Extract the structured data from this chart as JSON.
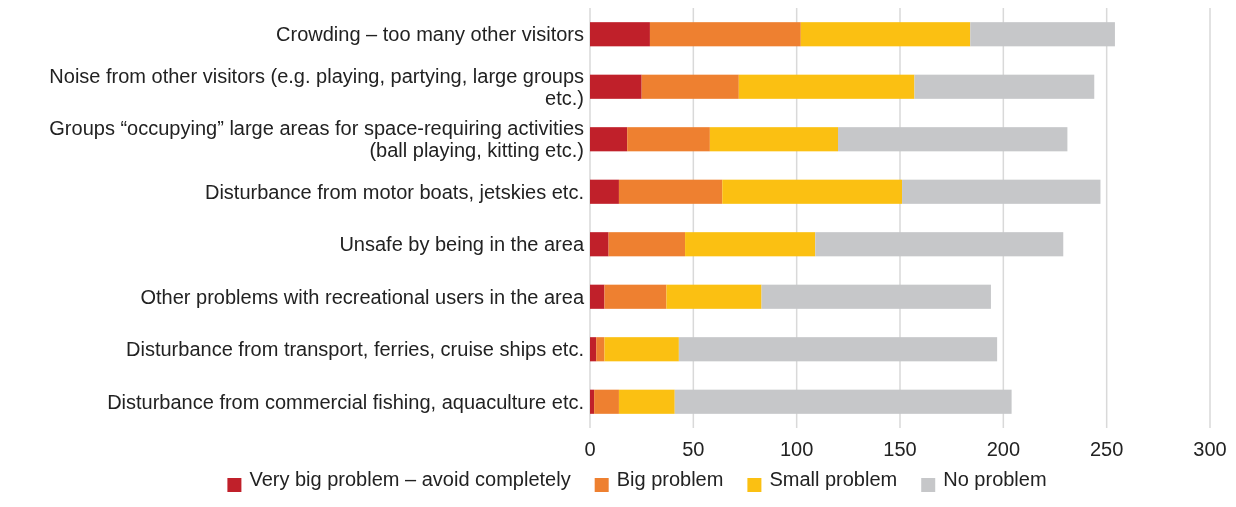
{
  "chart_data": {
    "type": "bar",
    "orientation": "horizontal",
    "stacked": true,
    "categories": [
      "Crowding – too many other visitors",
      "Noise from other visitors (e.g. playing, partying, large groups etc.)",
      "Groups “occupying” large areas for space-requiring activities (ball playing, kitting etc.)",
      "Disturbance from motor boats, jetskies etc.",
      "Unsafe by being in the area",
      "Other problems with recreational users in the area",
      "Disturbance from transport, ferries, cruise ships etc.",
      "Disturbance from commercial fishing, aquaculture etc."
    ],
    "series": [
      {
        "name": "Very big problem – avoid completely",
        "color": "#c0202a",
        "values": [
          29,
          25,
          18,
          14,
          9,
          7,
          3,
          2
        ]
      },
      {
        "name": "Big problem",
        "color": "#ee8030",
        "values": [
          73,
          47,
          40,
          50,
          37,
          30,
          4,
          12
        ]
      },
      {
        "name": "Small problem",
        "color": "#fbc012",
        "values": [
          82,
          85,
          62,
          87,
          63,
          46,
          36,
          27
        ]
      },
      {
        "name": "No problem",
        "color": "#c6c7c9",
        "values": [
          70,
          87,
          111,
          96,
          120,
          111,
          154,
          163
        ]
      }
    ],
    "xlim": [
      0,
      300
    ],
    "xticks": [
      0,
      50,
      100,
      150,
      200,
      250,
      300
    ],
    "grid": "x",
    "legend": "bottom"
  }
}
